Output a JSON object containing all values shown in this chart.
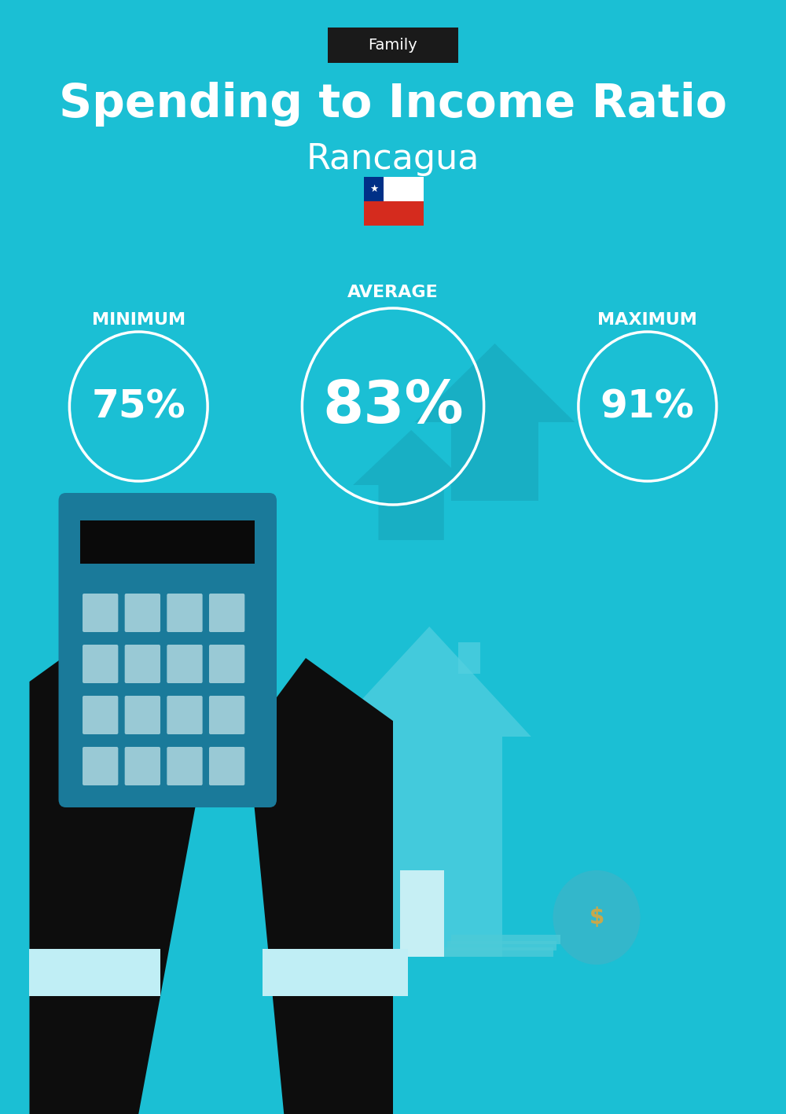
{
  "bg_color": "#1bbfd4",
  "tag_text": "Family",
  "tag_bg": "#1a1a1a",
  "tag_text_color": "#ffffff",
  "title": "Spending to Income Ratio",
  "subtitle": "Rancagua",
  "title_color": "#ffffff",
  "subtitle_color": "#ffffff",
  "min_label": "MINIMUM",
  "avg_label": "AVERAGE",
  "max_label": "MAXIMUM",
  "min_value": "75%",
  "avg_value": "83%",
  "max_value": "91%",
  "circle_color": "#ffffff",
  "circle_linewidth": 2.5,
  "value_color": "#ffffff",
  "label_color": "#ffffff",
  "fig_width": 10.0,
  "fig_height": 14.17,
  "dpi": 100
}
